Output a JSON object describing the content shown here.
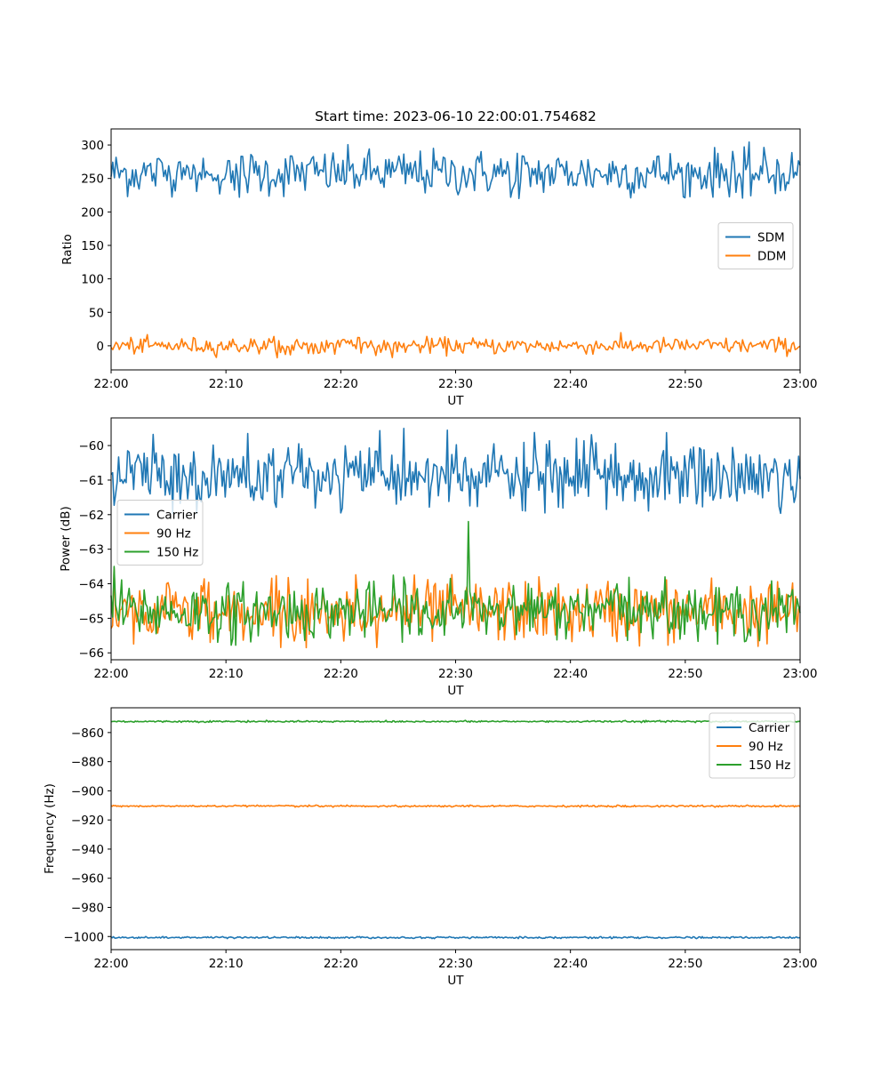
{
  "chart_data": [
    {
      "type": "line",
      "title": "Start time: 2023-06-10 22:00:01.754682",
      "xlabel": "UT",
      "ylabel": "Ratio",
      "x_range": [
        "22:00",
        "23:00"
      ],
      "x_ticks": [
        "22:00",
        "22:10",
        "22:20",
        "22:30",
        "22:40",
        "22:50",
        "23:00"
      ],
      "ylim": [
        -36,
        324
      ],
      "y_ticks": [
        "0",
        "50",
        "100",
        "150",
        "200",
        "250",
        "300"
      ],
      "legend_position": "center-right",
      "grid": false,
      "series": [
        {
          "name": "SDM",
          "color": "#1f77b4",
          "mean": 258,
          "noise": 17,
          "min": 220,
          "max": 310
        },
        {
          "name": "DDM",
          "color": "#ff7f0e",
          "mean": 0,
          "noise": 6,
          "min": -18,
          "max": 22
        }
      ]
    },
    {
      "type": "line",
      "title": "",
      "xlabel": "UT",
      "ylabel": "Power (dB)",
      "x_range": [
        "22:00",
        "23:00"
      ],
      "x_ticks": [
        "22:00",
        "22:10",
        "22:20",
        "22:30",
        "22:40",
        "22:50",
        "23:00"
      ],
      "ylim": [
        -66.2,
        -59.2
      ],
      "y_ticks": [
        "−66",
        "−65",
        "−64",
        "−63",
        "−62",
        "−61",
        "−60"
      ],
      "legend_position": "center-left",
      "grid": false,
      "series": [
        {
          "name": "Carrier",
          "color": "#1f77b4",
          "mean": -60.9,
          "noise": 0.5,
          "min": -62,
          "max": -59.5
        },
        {
          "name": "90 Hz",
          "color": "#ff7f0e",
          "mean": -64.8,
          "noise": 0.45,
          "min": -65.9,
          "max": -63.4
        },
        {
          "name": "150 Hz",
          "color": "#2ca02c",
          "mean": -64.8,
          "noise": 0.4,
          "min": -65.8,
          "max": -62.2
        }
      ]
    },
    {
      "type": "line",
      "title": "",
      "xlabel": "UT",
      "ylabel": "Frequency (Hz)",
      "x_range": [
        "22:00",
        "23:00"
      ],
      "x_ticks": [
        "22:00",
        "22:10",
        "22:20",
        "22:30",
        "22:40",
        "22:50",
        "23:00"
      ],
      "ylim": [
        -1009,
        -843
      ],
      "y_ticks": [
        "−1000",
        "−980",
        "−960",
        "−940",
        "−920",
        "−900",
        "−880",
        "−860"
      ],
      "legend_position": "top-right",
      "grid": false,
      "series": [
        {
          "name": "Carrier",
          "color": "#1f77b4",
          "mean": -1000.7,
          "noise": 0.3,
          "min": -1001.5,
          "max": -1000
        },
        {
          "name": "90 Hz",
          "color": "#ff7f0e",
          "mean": -910.5,
          "noise": 0.3,
          "min": -911.3,
          "max": -909.7
        },
        {
          "name": "150 Hz",
          "color": "#2ca02c",
          "mean": -852.4,
          "noise": 0.3,
          "min": -853.2,
          "max": -851.6
        }
      ]
    }
  ]
}
